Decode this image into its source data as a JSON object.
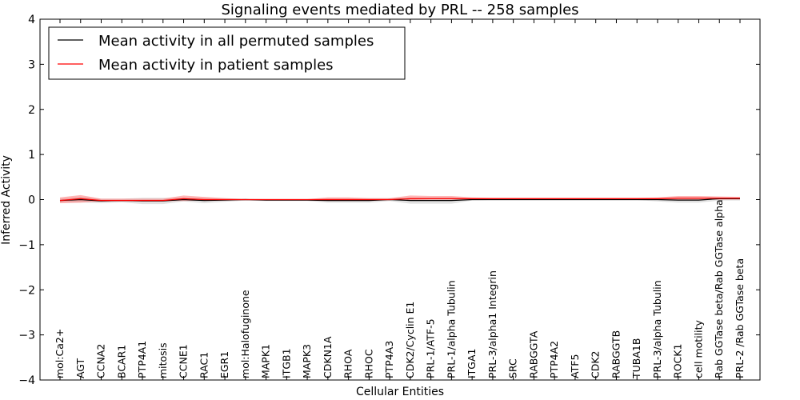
{
  "chart_data": {
    "type": "line",
    "title": "Signaling events mediated by PRL -- 258 samples",
    "xlabel": "Cellular Entities",
    "ylabel": "Inferred Activity",
    "ylim": [
      -4,
      4
    ],
    "yticks": [
      4,
      3,
      2,
      1,
      0,
      -1,
      -2,
      -3,
      -4
    ],
    "ytick_labels": [
      "4",
      "3",
      "2",
      "1",
      "0",
      "−1",
      "−2",
      "−3",
      "−4"
    ],
    "legend_position": "top-left",
    "categories": [
      "mol:Ca2+",
      "AGT",
      "CCNA2",
      "BCAR1",
      "PTP4A1",
      "mitosis",
      "CCNE1",
      "RAC1",
      "EGR1",
      "mol:Halofuginone",
      "MAPK1",
      "ITGB1",
      "MAPK3",
      "CDKN1A",
      "RHOA",
      "RHOC",
      "PTP4A3",
      "CDK2/Cyclin E1",
      "PRL-1/ATF-5",
      "PRL-1/alpha Tubulin",
      "ITGA1",
      "PRL-3/alpha1 Integrin",
      "SRC",
      "RABGGTA",
      "PTP4A2",
      "ATF5",
      "CDK2",
      "RABGGTB",
      "TUBA1B",
      "PRL-3/alpha Tubulin",
      "ROCK1",
      "cell motility",
      "Rab GGTase beta/Rab GGTase alpha",
      "PRL-2 /Rab GGTase beta"
    ],
    "series": [
      {
        "name": "Mean activity in all permuted samples",
        "color": "#000000",
        "values": [
          -0.02,
          0.0,
          -0.03,
          -0.02,
          -0.03,
          -0.03,
          0.0,
          -0.02,
          -0.01,
          0.0,
          -0.01,
          -0.01,
          -0.01,
          -0.02,
          -0.02,
          -0.02,
          0.0,
          -0.02,
          -0.02,
          -0.02,
          0.0,
          0.0,
          0.0,
          0.0,
          0.0,
          0.0,
          0.0,
          0.0,
          0.0,
          0.0,
          -0.01,
          -0.01,
          0.02,
          0.02
        ],
        "band_low": [
          -0.06,
          -0.06,
          -0.08,
          -0.06,
          -0.1,
          -0.1,
          -0.04,
          -0.08,
          -0.05,
          -0.02,
          -0.03,
          -0.03,
          -0.03,
          -0.07,
          -0.07,
          -0.07,
          -0.03,
          -0.09,
          -0.09,
          -0.09,
          -0.02,
          -0.01,
          -0.01,
          -0.01,
          -0.01,
          -0.01,
          -0.01,
          -0.01,
          -0.01,
          -0.04,
          -0.07,
          -0.07,
          -0.02,
          -0.02
        ],
        "band_high": [
          0.02,
          0.06,
          0.02,
          0.02,
          0.04,
          0.04,
          0.04,
          0.04,
          0.03,
          0.02,
          0.01,
          0.01,
          0.01,
          0.03,
          0.03,
          0.03,
          0.03,
          0.05,
          0.05,
          0.05,
          0.02,
          0.01,
          0.01,
          0.01,
          0.01,
          0.01,
          0.01,
          0.01,
          0.01,
          0.03,
          0.05,
          0.05,
          0.05,
          0.05
        ]
      },
      {
        "name": "Mean activity in patient samples",
        "color": "#ff0000",
        "values": [
          -0.02,
          0.02,
          -0.02,
          -0.02,
          -0.02,
          -0.02,
          0.02,
          0.0,
          0.0,
          0.0,
          0.0,
          0.0,
          0.0,
          0.0,
          0.0,
          0.0,
          0.0,
          0.02,
          0.02,
          0.02,
          0.02,
          0.02,
          0.02,
          0.02,
          0.02,
          0.02,
          0.02,
          0.02,
          0.02,
          0.02,
          0.03,
          0.03,
          0.03,
          0.03
        ],
        "band_low": [
          -0.08,
          -0.07,
          -0.04,
          -0.03,
          -0.03,
          -0.03,
          -0.03,
          -0.02,
          -0.01,
          -0.01,
          -0.01,
          -0.01,
          -0.01,
          -0.01,
          -0.01,
          -0.01,
          -0.01,
          -0.01,
          0.0,
          0.0,
          0.0,
          0.0,
          0.0,
          0.0,
          0.0,
          0.0,
          0.0,
          0.0,
          0.0,
          0.0,
          0.0,
          0.0,
          0.0,
          0.0
        ],
        "band_high": [
          0.05,
          0.1,
          0.02,
          0.02,
          0.02,
          0.02,
          0.09,
          0.06,
          0.03,
          0.01,
          0.01,
          0.01,
          0.01,
          0.05,
          0.05,
          0.03,
          0.03,
          0.09,
          0.08,
          0.08,
          0.05,
          0.04,
          0.04,
          0.04,
          0.04,
          0.04,
          0.04,
          0.04,
          0.04,
          0.05,
          0.08,
          0.08,
          0.07,
          0.06
        ]
      }
    ]
  }
}
